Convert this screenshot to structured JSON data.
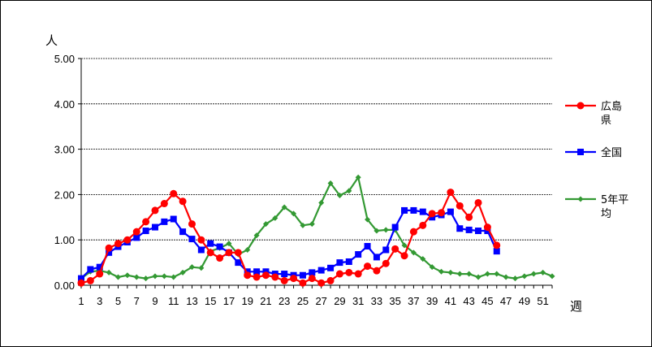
{
  "chart_data": {
    "type": "line",
    "ylabel": "人",
    "xlabel": "週",
    "ylim": [
      0,
      5
    ],
    "yticks": [
      "0.00",
      "1.00",
      "2.00",
      "3.00",
      "4.00",
      "5.00"
    ],
    "xticks": [
      1,
      3,
      5,
      7,
      9,
      11,
      13,
      15,
      17,
      19,
      21,
      23,
      25,
      27,
      29,
      31,
      33,
      35,
      37,
      39,
      41,
      43,
      45,
      47,
      49,
      51
    ],
    "grid": true,
    "legend_position": "right",
    "series": [
      {
        "name": "広島県",
        "color": "#ff0000",
        "marker": "circle",
        "x": [
          1,
          2,
          3,
          4,
          5,
          6,
          7,
          8,
          9,
          10,
          11,
          12,
          13,
          14,
          15,
          16,
          17,
          18,
          19,
          20,
          21,
          22,
          23,
          24,
          25,
          26,
          27,
          28,
          29,
          30,
          31,
          32,
          33,
          34,
          35,
          36,
          37,
          38,
          39,
          40,
          41,
          42,
          43,
          44,
          45,
          46
        ],
        "values": [
          0.05,
          0.1,
          0.25,
          0.82,
          0.92,
          1.0,
          1.18,
          1.4,
          1.65,
          1.8,
          2.02,
          1.85,
          1.35,
          1.0,
          0.72,
          0.6,
          0.72,
          0.72,
          0.22,
          0.18,
          0.22,
          0.18,
          0.1,
          0.15,
          0.05,
          0.15,
          0.05,
          0.1,
          0.25,
          0.28,
          0.25,
          0.42,
          0.32,
          0.48,
          0.8,
          0.65,
          1.18,
          1.32,
          1.58,
          1.6,
          2.05,
          1.75,
          1.5,
          1.82,
          1.28,
          0.88
        ]
      },
      {
        "name": "全国",
        "color": "#0000ff",
        "marker": "square",
        "x": [
          1,
          2,
          3,
          4,
          5,
          6,
          7,
          8,
          9,
          10,
          11,
          12,
          13,
          14,
          15,
          16,
          17,
          18,
          19,
          20,
          21,
          22,
          23,
          24,
          25,
          26,
          27,
          28,
          29,
          30,
          31,
          32,
          33,
          34,
          35,
          36,
          37,
          38,
          39,
          40,
          41,
          42,
          43,
          44,
          45,
          46
        ],
        "values": [
          0.15,
          0.35,
          0.4,
          0.72,
          0.85,
          0.95,
          1.05,
          1.2,
          1.28,
          1.4,
          1.46,
          1.18,
          1.02,
          0.78,
          0.92,
          0.85,
          0.72,
          0.5,
          0.3,
          0.3,
          0.3,
          0.25,
          0.25,
          0.22,
          0.22,
          0.28,
          0.33,
          0.38,
          0.5,
          0.52,
          0.68,
          0.86,
          0.62,
          0.78,
          1.28,
          1.65,
          1.65,
          1.62,
          1.5,
          1.55,
          1.62,
          1.25,
          1.22,
          1.2,
          1.2,
          0.75
        ]
      },
      {
        "name": "5年平均",
        "color": "#339933",
        "marker": "diamond",
        "x": [
          1,
          2,
          3,
          4,
          5,
          6,
          7,
          8,
          9,
          10,
          11,
          12,
          13,
          14,
          15,
          16,
          17,
          18,
          19,
          20,
          21,
          22,
          23,
          24,
          25,
          26,
          27,
          28,
          29,
          30,
          31,
          32,
          33,
          34,
          35,
          36,
          37,
          38,
          39,
          40,
          41,
          42,
          43,
          44,
          45,
          46,
          47,
          48,
          49,
          50,
          51,
          52
        ],
        "values": [
          0.15,
          0.3,
          0.32,
          0.28,
          0.18,
          0.22,
          0.18,
          0.15,
          0.2,
          0.2,
          0.18,
          0.28,
          0.4,
          0.38,
          0.75,
          0.82,
          0.92,
          0.68,
          0.78,
          1.1,
          1.35,
          1.48,
          1.72,
          1.58,
          1.32,
          1.35,
          1.82,
          2.25,
          1.98,
          2.08,
          2.38,
          1.45,
          1.2,
          1.22,
          1.22,
          0.88,
          0.72,
          0.58,
          0.4,
          0.3,
          0.28,
          0.25,
          0.25,
          0.18,
          0.25,
          0.25,
          0.18,
          0.15,
          0.2,
          0.25,
          0.28,
          0.2
        ]
      }
    ]
  }
}
